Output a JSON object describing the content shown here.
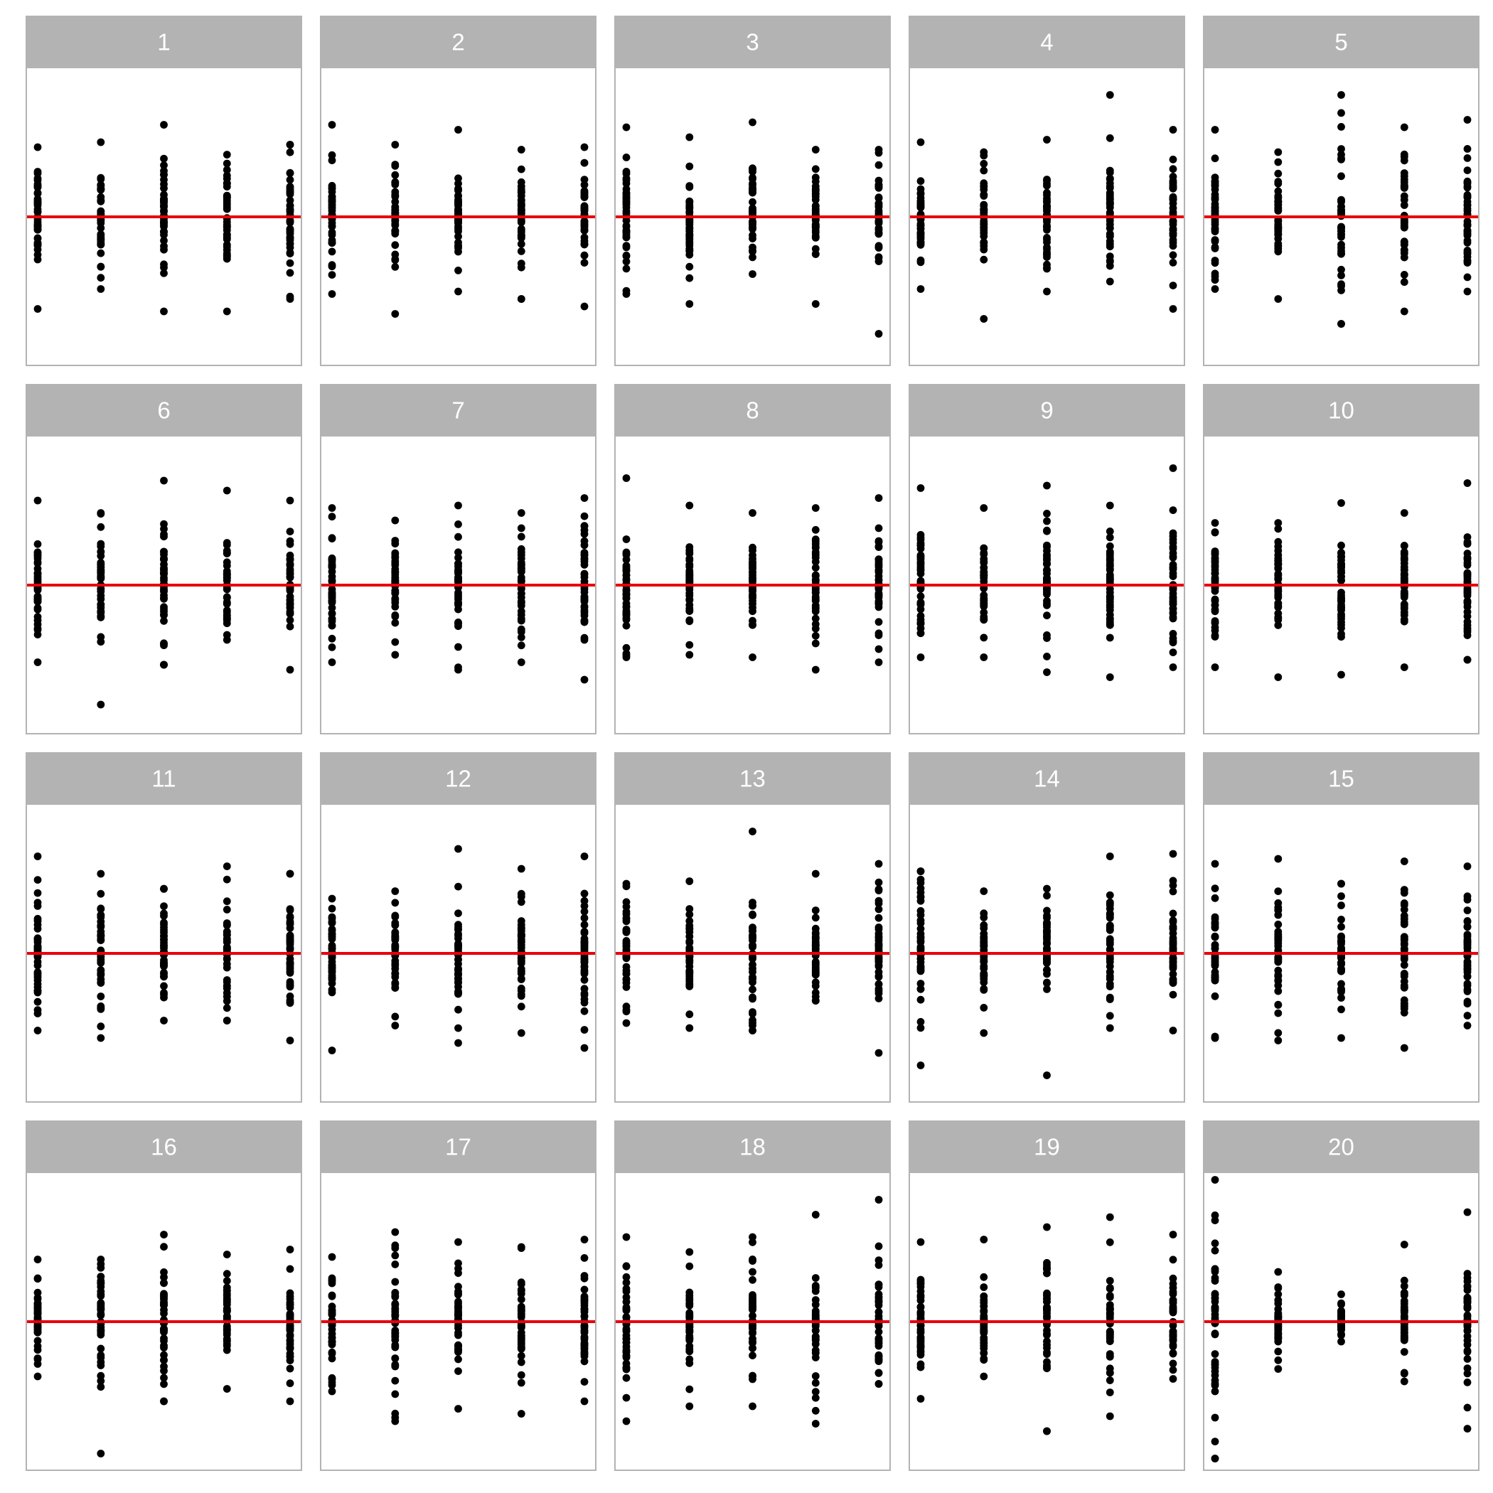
{
  "chart_data": {
    "type": "scatter",
    "layout": "small-multiples",
    "title": "",
    "xlabel": "",
    "ylabel": "",
    "x_categories": [
      1,
      2,
      3,
      4,
      5
    ],
    "ylim": [
      -6,
      6
    ],
    "reference_line": {
      "y": 0,
      "color": "#e8000b"
    },
    "grid": false,
    "axes_shown": false,
    "colors": {
      "points": "#000000",
      "strip": "#b3b3b3",
      "strip_text": "#ffffff",
      "border": "#b3b3b3"
    },
    "panels": [
      {
        "label": "1",
        "groups": [
          {
            "x": 1,
            "min": -3.7,
            "max": 2.8
          },
          {
            "x": 2,
            "min": -2.9,
            "max": 3.0
          },
          {
            "x": 3,
            "min": -3.8,
            "max": 3.7
          },
          {
            "x": 4,
            "min": -3.8,
            "max": 2.5
          },
          {
            "x": 5,
            "min": -3.3,
            "max": 2.9
          }
        ]
      },
      {
        "label": "2",
        "groups": [
          {
            "x": 1,
            "min": -3.1,
            "max": 3.7
          },
          {
            "x": 2,
            "min": -3.9,
            "max": 2.9
          },
          {
            "x": 3,
            "min": -3.0,
            "max": 3.5
          },
          {
            "x": 4,
            "min": -3.3,
            "max": 2.7
          },
          {
            "x": 5,
            "min": -3.6,
            "max": 2.8
          }
        ]
      },
      {
        "label": "3",
        "groups": [
          {
            "x": 1,
            "min": -3.1,
            "max": 3.6
          },
          {
            "x": 2,
            "min": -3.5,
            "max": 3.2
          },
          {
            "x": 3,
            "min": -2.3,
            "max": 3.8
          },
          {
            "x": 4,
            "min": -3.5,
            "max": 2.7
          },
          {
            "x": 5,
            "min": -4.7,
            "max": 2.7
          }
        ]
      },
      {
        "label": "4",
        "groups": [
          {
            "x": 1,
            "min": -2.9,
            "max": 3.0
          },
          {
            "x": 2,
            "min": -4.1,
            "max": 2.6
          },
          {
            "x": 3,
            "min": -3.0,
            "max": 3.1
          },
          {
            "x": 4,
            "min": -2.6,
            "max": 4.9
          },
          {
            "x": 5,
            "min": -3.7,
            "max": 3.5
          }
        ]
      },
      {
        "label": "5",
        "groups": [
          {
            "x": 1,
            "min": -2.9,
            "max": 3.5
          },
          {
            "x": 2,
            "min": -3.3,
            "max": 2.6
          },
          {
            "x": 3,
            "min": -4.3,
            "max": 4.9
          },
          {
            "x": 4,
            "min": -3.8,
            "max": 3.6
          },
          {
            "x": 5,
            "min": -3.0,
            "max": 3.9
          }
        ]
      },
      {
        "label": "6",
        "groups": [
          {
            "x": 1,
            "min": -3.1,
            "max": 3.4
          },
          {
            "x": 2,
            "min": -4.8,
            "max": 2.9
          },
          {
            "x": 3,
            "min": -3.2,
            "max": 4.2
          },
          {
            "x": 4,
            "min": -2.2,
            "max": 3.8
          },
          {
            "x": 5,
            "min": -3.4,
            "max": 3.4
          }
        ]
      },
      {
        "label": "7",
        "groups": [
          {
            "x": 1,
            "min": -3.1,
            "max": 3.1
          },
          {
            "x": 2,
            "min": -2.8,
            "max": 2.6
          },
          {
            "x": 3,
            "min": -3.4,
            "max": 3.2
          },
          {
            "x": 4,
            "min": -3.1,
            "max": 2.9
          },
          {
            "x": 5,
            "min": -3.8,
            "max": 3.5
          }
        ]
      },
      {
        "label": "8",
        "groups": [
          {
            "x": 1,
            "min": -2.9,
            "max": 4.3
          },
          {
            "x": 2,
            "min": -2.8,
            "max": 3.2
          },
          {
            "x": 3,
            "min": -2.9,
            "max": 2.9
          },
          {
            "x": 4,
            "min": -3.4,
            "max": 3.1
          },
          {
            "x": 5,
            "min": -3.1,
            "max": 3.5
          }
        ]
      },
      {
        "label": "9",
        "groups": [
          {
            "x": 1,
            "min": -2.9,
            "max": 3.9
          },
          {
            "x": 2,
            "min": -2.9,
            "max": 3.1
          },
          {
            "x": 3,
            "min": -3.5,
            "max": 4.0
          },
          {
            "x": 4,
            "min": -3.7,
            "max": 3.2
          },
          {
            "x": 5,
            "min": -3.3,
            "max": 4.7
          }
        ]
      },
      {
        "label": "10",
        "groups": [
          {
            "x": 1,
            "min": -3.3,
            "max": 2.5
          },
          {
            "x": 2,
            "min": -3.7,
            "max": 2.5
          },
          {
            "x": 3,
            "min": -3.6,
            "max": 3.3
          },
          {
            "x": 4,
            "min": -3.3,
            "max": 2.9
          },
          {
            "x": 5,
            "min": -3.0,
            "max": 4.1
          }
        ]
      },
      {
        "label": "11",
        "groups": [
          {
            "x": 1,
            "min": -3.1,
            "max": 3.9
          },
          {
            "x": 2,
            "min": -3.4,
            "max": 3.2
          },
          {
            "x": 3,
            "min": -2.7,
            "max": 2.6
          },
          {
            "x": 4,
            "min": -2.7,
            "max": 3.5
          },
          {
            "x": 5,
            "min": -3.5,
            "max": 3.2
          }
        ]
      },
      {
        "label": "12",
        "groups": [
          {
            "x": 1,
            "min": -3.9,
            "max": 2.2
          },
          {
            "x": 2,
            "min": -2.9,
            "max": 2.5
          },
          {
            "x": 3,
            "min": -3.6,
            "max": 4.2
          },
          {
            "x": 4,
            "min": -3.2,
            "max": 3.4
          },
          {
            "x": 5,
            "min": -3.8,
            "max": 3.9
          }
        ]
      },
      {
        "label": "13",
        "groups": [
          {
            "x": 1,
            "min": -2.8,
            "max": 2.8
          },
          {
            "x": 2,
            "min": -3.0,
            "max": 2.9
          },
          {
            "x": 3,
            "min": -3.1,
            "max": 4.9
          },
          {
            "x": 4,
            "min": -1.9,
            "max": 3.2
          },
          {
            "x": 5,
            "min": -4.0,
            "max": 3.6
          }
        ]
      },
      {
        "label": "14",
        "groups": [
          {
            "x": 1,
            "min": -4.5,
            "max": 3.3
          },
          {
            "x": 2,
            "min": -3.2,
            "max": 2.5
          },
          {
            "x": 3,
            "min": -4.9,
            "max": 2.6
          },
          {
            "x": 4,
            "min": -3.0,
            "max": 3.9
          },
          {
            "x": 5,
            "min": -3.1,
            "max": 4.0
          }
        ]
      },
      {
        "label": "15",
        "groups": [
          {
            "x": 1,
            "min": -3.4,
            "max": 3.6
          },
          {
            "x": 2,
            "min": -3.5,
            "max": 3.8
          },
          {
            "x": 3,
            "min": -3.4,
            "max": 2.8
          },
          {
            "x": 4,
            "min": -3.8,
            "max": 3.7
          },
          {
            "x": 5,
            "min": -2.9,
            "max": 3.5
          }
        ]
      },
      {
        "label": "16",
        "groups": [
          {
            "x": 1,
            "min": -2.2,
            "max": 2.5
          },
          {
            "x": 2,
            "min": -5.3,
            "max": 2.5
          },
          {
            "x": 3,
            "min": -3.2,
            "max": 3.5
          },
          {
            "x": 4,
            "min": -2.7,
            "max": 2.7
          },
          {
            "x": 5,
            "min": -3.2,
            "max": 2.9
          }
        ]
      },
      {
        "label": "17",
        "groups": [
          {
            "x": 1,
            "min": -2.8,
            "max": 2.6
          },
          {
            "x": 2,
            "min": -4.0,
            "max": 3.6
          },
          {
            "x": 3,
            "min": -3.5,
            "max": 3.2
          },
          {
            "x": 4,
            "min": -3.7,
            "max": 3.0
          },
          {
            "x": 5,
            "min": -3.2,
            "max": 3.3
          }
        ]
      },
      {
        "label": "18",
        "groups": [
          {
            "x": 1,
            "min": -4.0,
            "max": 3.4
          },
          {
            "x": 2,
            "min": -3.4,
            "max": 2.8
          },
          {
            "x": 3,
            "min": -3.4,
            "max": 3.4
          },
          {
            "x": 4,
            "min": -4.1,
            "max": 4.3
          },
          {
            "x": 5,
            "min": -2.5,
            "max": 4.9
          }
        ]
      },
      {
        "label": "19",
        "groups": [
          {
            "x": 1,
            "min": -3.1,
            "max": 3.2
          },
          {
            "x": 2,
            "min": -2.2,
            "max": 3.3
          },
          {
            "x": 3,
            "min": -4.4,
            "max": 3.8
          },
          {
            "x": 4,
            "min": -3.8,
            "max": 4.2
          },
          {
            "x": 5,
            "min": -2.3,
            "max": 3.5
          }
        ]
      },
      {
        "label": "20",
        "groups": [
          {
            "x": 1,
            "min": -5.5,
            "max": 5.7
          },
          {
            "x": 2,
            "min": -1.9,
            "max": 2.0
          },
          {
            "x": 3,
            "min": -0.8,
            "max": 1.1
          },
          {
            "x": 4,
            "min": -2.4,
            "max": 3.1
          },
          {
            "x": 5,
            "min": -4.3,
            "max": 4.4
          }
        ]
      }
    ]
  }
}
